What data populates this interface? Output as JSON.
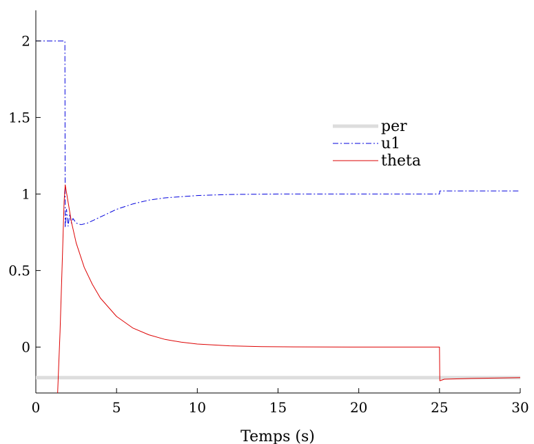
{
  "chart_data": {
    "type": "line",
    "title": "",
    "xlabel": "Temps (s)",
    "ylabel": "",
    "xlim": [
      0,
      30
    ],
    "ylim": [
      -0.3,
      2.2
    ],
    "xticks": [
      0,
      5,
      10,
      15,
      20,
      25,
      30
    ],
    "yticks": [
      0,
      0.5,
      1,
      1.5,
      2
    ],
    "xtick_labels": [
      "0",
      "5",
      "10",
      "15",
      "20",
      "25",
      "30"
    ],
    "ytick_labels": [
      "0",
      "0.5",
      "1",
      "1.5",
      "2"
    ],
    "grid": false,
    "legend_position": "center-right",
    "series": [
      {
        "name": "per",
        "color": "#dddddd",
        "style": "solid",
        "width": 5,
        "points": [
          [
            0,
            -0.2
          ],
          [
            30,
            -0.2
          ]
        ]
      },
      {
        "name": "u1",
        "color": "#0000dd",
        "style": "dashdot",
        "width": 1,
        "points": [
          [
            0,
            2.0
          ],
          [
            1.8,
            2.0
          ],
          [
            1.82,
            0.78
          ],
          [
            1.9,
            0.9
          ],
          [
            2.0,
            0.79
          ],
          [
            2.1,
            0.87
          ],
          [
            2.2,
            0.81
          ],
          [
            2.3,
            0.84
          ],
          [
            2.5,
            0.81
          ],
          [
            2.8,
            0.8
          ],
          [
            3.2,
            0.81
          ],
          [
            4,
            0.85
          ],
          [
            5,
            0.9
          ],
          [
            6,
            0.935
          ],
          [
            7,
            0.96
          ],
          [
            8,
            0.975
          ],
          [
            10,
            0.99
          ],
          [
            12,
            0.997
          ],
          [
            15,
            1.0
          ],
          [
            20,
            1.0
          ],
          [
            25,
            1.0
          ],
          [
            25.02,
            1.02
          ],
          [
            30,
            1.02
          ]
        ]
      },
      {
        "name": "theta",
        "color": "#dd0000",
        "style": "solid",
        "width": 1,
        "points": [
          [
            1.35,
            -0.3
          ],
          [
            1.5,
            0.1
          ],
          [
            1.65,
            0.6
          ],
          [
            1.75,
            0.95
          ],
          [
            1.82,
            1.06
          ],
          [
            2.2,
            0.82
          ],
          [
            2.5,
            0.68
          ],
          [
            3,
            0.52
          ],
          [
            3.5,
            0.41
          ],
          [
            4,
            0.32
          ],
          [
            5,
            0.2
          ],
          [
            6,
            0.125
          ],
          [
            7,
            0.08
          ],
          [
            8,
            0.05
          ],
          [
            9,
            0.032
          ],
          [
            10,
            0.02
          ],
          [
            12,
            0.008
          ],
          [
            14,
            0.003
          ],
          [
            16,
            0.001
          ],
          [
            20,
            0.0
          ],
          [
            25,
            0.0
          ],
          [
            25.02,
            -0.22
          ],
          [
            25.3,
            -0.21
          ],
          [
            27,
            -0.205
          ],
          [
            30,
            -0.2
          ]
        ]
      }
    ]
  }
}
